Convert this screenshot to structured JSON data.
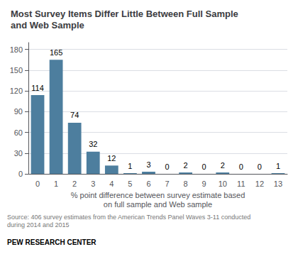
{
  "chart_data": {
    "type": "bar",
    "title": "Most Survey Items Differ Little Between Full Sample\nand Web Sample",
    "categories": [
      0,
      1,
      2,
      3,
      4,
      5,
      6,
      7,
      8,
      9,
      10,
      11,
      12,
      13
    ],
    "values": [
      114,
      165,
      74,
      32,
      12,
      1,
      3,
      0,
      2,
      0,
      2,
      0,
      0,
      1
    ],
    "color": "#4d7e9e",
    "xlabel": "% point difference between survey estimate based\non full sample and Web sample",
    "ylim": [
      0,
      190
    ],
    "yticks": [
      0,
      30,
      60,
      90,
      120,
      150,
      180
    ],
    "grid": true,
    "data_labels": true,
    "annotations": [
      "Source: 406 survey estimates from the American Trends Panel Waves 3-11 conducted\nduring 2014 and 2015",
      "PEW RESEARCH CENTER"
    ]
  }
}
